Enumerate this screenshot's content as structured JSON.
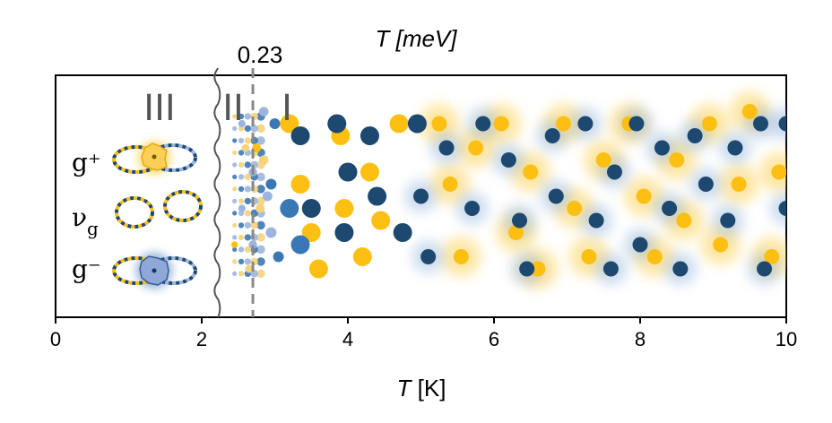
{
  "chart_data": {
    "type": "scatter",
    "title": "",
    "xlabel": "T [K]",
    "top_axis_label": "T [meV]",
    "top_axis_marker": "0.23",
    "xlim": [
      0,
      10
    ],
    "x_ticks": [
      "0",
      "2",
      "4",
      "6",
      "8",
      "10"
    ],
    "threshold_x": 2.7,
    "break_x": 2.2,
    "regions": [
      "III",
      "II",
      "I"
    ],
    "state_labels": {
      "g_plus": "g⁺",
      "nu_g": "ν",
      "nu_g_sub": "g",
      "g_minus": "g⁻"
    },
    "colors": {
      "yellow": "#fdbf11",
      "dark": "#1d4870",
      "mid": "#3a78b5",
      "light": "#9db5de",
      "pale": "#f4d37a",
      "grey": "#666666"
    },
    "series": [
      {
        "name": "",
        "color": "yellow",
        "points": [
          [
            2.45,
            0.3
          ],
          [
            2.75,
            0.7
          ],
          [
            3.2,
            0.8
          ],
          [
            3.35,
            0.55
          ],
          [
            3.5,
            0.35
          ],
          [
            3.6,
            0.2
          ],
          [
            3.9,
            0.75
          ],
          [
            3.95,
            0.45
          ],
          [
            4.2,
            0.25
          ],
          [
            4.3,
            0.6
          ],
          [
            4.45,
            0.4
          ],
          [
            4.7,
            0.8
          ],
          [
            5.25,
            0.8
          ],
          [
            5.4,
            0.55
          ],
          [
            5.55,
            0.25
          ],
          [
            5.75,
            0.7
          ],
          [
            6.1,
            0.8
          ],
          [
            6.3,
            0.35
          ],
          [
            6.5,
            0.6
          ],
          [
            6.6,
            0.2
          ],
          [
            6.95,
            0.8
          ],
          [
            7.1,
            0.45
          ],
          [
            7.3,
            0.25
          ],
          [
            7.5,
            0.65
          ],
          [
            7.85,
            0.8
          ],
          [
            8.05,
            0.5
          ],
          [
            8.2,
            0.25
          ],
          [
            8.5,
            0.65
          ],
          [
            8.6,
            0.4
          ],
          [
            8.95,
            0.8
          ],
          [
            9.1,
            0.3
          ],
          [
            9.35,
            0.55
          ],
          [
            9.5,
            0.85
          ],
          [
            9.8,
            0.25
          ],
          [
            9.9,
            0.6
          ]
        ]
      },
      {
        "name": "",
        "color": "dark",
        "points": [
          [
            3.35,
            0.75
          ],
          [
            3.5,
            0.45
          ],
          [
            3.85,
            0.8
          ],
          [
            3.95,
            0.35
          ],
          [
            4.0,
            0.6
          ],
          [
            4.3,
            0.75
          ],
          [
            4.4,
            0.5
          ],
          [
            4.75,
            0.35
          ],
          [
            4.95,
            0.8
          ],
          [
            5.0,
            0.5
          ],
          [
            5.1,
            0.25
          ],
          [
            5.35,
            0.7
          ],
          [
            5.7,
            0.45
          ],
          [
            5.85,
            0.8
          ],
          [
            6.2,
            0.65
          ],
          [
            6.35,
            0.4
          ],
          [
            6.45,
            0.2
          ],
          [
            6.8,
            0.75
          ],
          [
            6.85,
            0.5
          ],
          [
            7.25,
            0.8
          ],
          [
            7.4,
            0.4
          ],
          [
            7.6,
            0.2
          ],
          [
            7.65,
            0.6
          ],
          [
            7.95,
            0.8
          ],
          [
            8.0,
            0.3
          ],
          [
            8.3,
            0.7
          ],
          [
            8.4,
            0.45
          ],
          [
            8.55,
            0.2
          ],
          [
            8.75,
            0.75
          ],
          [
            8.9,
            0.55
          ],
          [
            9.2,
            0.4
          ],
          [
            9.3,
            0.7
          ],
          [
            9.65,
            0.8
          ],
          [
            9.7,
            0.2
          ],
          [
            10.0,
            0.8
          ],
          [
            10.0,
            0.45
          ]
        ]
      },
      {
        "name": "",
        "color": "mid",
        "points": [
          [
            3.0,
            0.8
          ],
          [
            3.05,
            0.25
          ],
          [
            3.2,
            0.45
          ],
          [
            3.35,
            0.3
          ],
          [
            2.95,
            0.55
          ]
        ]
      },
      {
        "name": "",
        "color": "light",
        "points": [
          [
            2.55,
            0.8
          ],
          [
            2.7,
            0.6
          ],
          [
            2.55,
            0.45
          ],
          [
            2.7,
            0.3
          ],
          [
            2.85,
            0.85
          ],
          [
            2.9,
            0.5
          ],
          [
            2.95,
            0.35
          ]
        ]
      },
      {
        "name": "",
        "color": "pale",
        "points": [
          [
            2.6,
            0.7
          ],
          [
            2.8,
            0.45
          ],
          [
            2.65,
            0.2
          ],
          [
            2.85,
            0.65
          ]
        ]
      }
    ]
  }
}
